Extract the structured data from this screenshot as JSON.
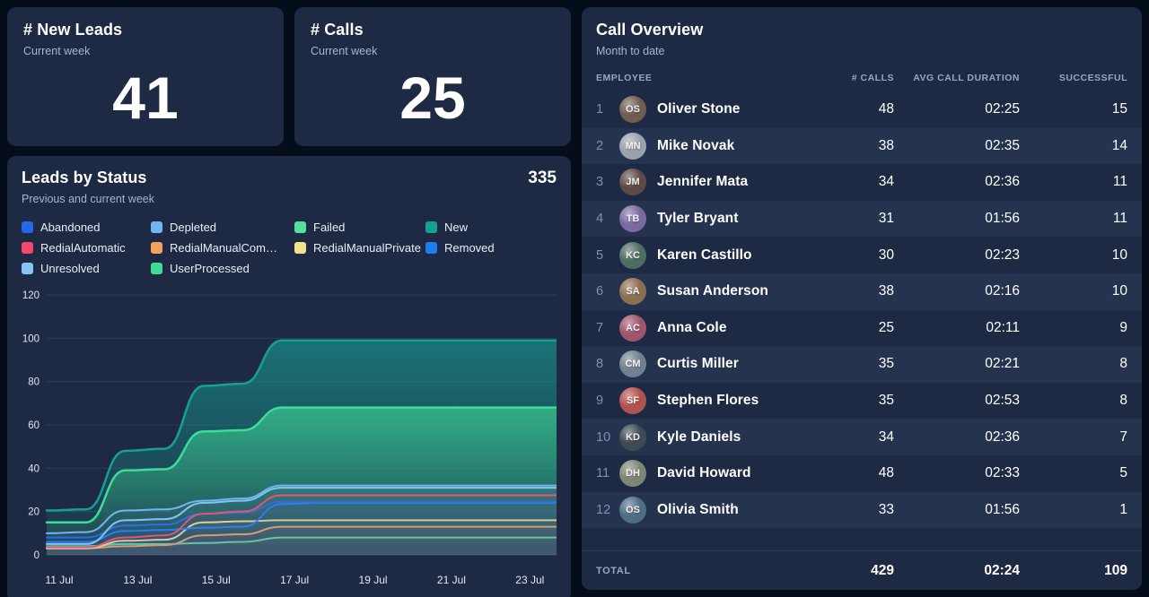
{
  "kpis": [
    {
      "title": "# New Leads",
      "subtitle": "Current week",
      "value": "41"
    },
    {
      "title": "# Calls",
      "subtitle": "Current week",
      "value": "25"
    }
  ],
  "leads": {
    "title": "Leads by Status",
    "subtitle": "Previous and current week",
    "total": "335"
  },
  "chart_data": {
    "type": "area",
    "title": "Leads by Status",
    "x_days": [
      11,
      12,
      13,
      14,
      15,
      16,
      17,
      18,
      19,
      20,
      21,
      22,
      23,
      24
    ],
    "x_tick_labels": [
      "11 Jul",
      "13 Jul",
      "15 Jul",
      "17 Jul",
      "19 Jul",
      "21 Jul",
      "23 Jul"
    ],
    "x_tick_days": [
      11,
      13,
      15,
      17,
      19,
      21,
      23
    ],
    "y_ticks": [
      0,
      20,
      40,
      60,
      80,
      100,
      120
    ],
    "ylim": [
      0,
      120
    ],
    "grid": true,
    "legend_position": "top",
    "legend": [
      {
        "label": "Abandoned",
        "color": "#2368e9"
      },
      {
        "label": "Depleted",
        "color": "#70b5f1"
      },
      {
        "label": "Failed",
        "color": "#55e0a0"
      },
      {
        "label": "New",
        "color": "#16a095"
      },
      {
        "label": "RedialAutomatic",
        "color": "#f5476b"
      },
      {
        "label": "RedialManualCom…",
        "color": "#f5a25e"
      },
      {
        "label": "RedialManualPrivate",
        "color": "#f2e38d"
      },
      {
        "label": "Removed",
        "color": "#1d7ef2"
      },
      {
        "label": "Unresolved",
        "color": "#86c5f4"
      },
      {
        "label": "UserProcessed",
        "color": "#3edc97"
      }
    ],
    "series": [
      {
        "name": "New",
        "color": "#16a095",
        "area": "gradient",
        "values": [
          20.5,
          21,
          48,
          49,
          78,
          79,
          99,
          99,
          99,
          99,
          99,
          99,
          99,
          99
        ]
      },
      {
        "name": "UserProcessed",
        "color": "#3edc97",
        "area": "gradient",
        "values": [
          15,
          15,
          39,
          39.5,
          57,
          57.5,
          68,
          68,
          68,
          68,
          68,
          68,
          68,
          68
        ]
      },
      {
        "name": "Failed",
        "color": "#55e0a0",
        "area": "faint",
        "values": [
          4,
          4,
          5,
          5,
          5.5,
          6,
          8,
          8,
          8,
          8,
          8,
          8,
          8,
          8
        ]
      },
      {
        "name": "RedialManualCom…",
        "color": "#f5a25e",
        "area": "faint",
        "values": [
          3,
          3,
          4,
          4.5,
          9,
          9.5,
          13,
          13,
          13,
          13,
          13,
          13,
          13,
          13
        ]
      },
      {
        "name": "RedialManualPrivate",
        "color": "#f2e38d",
        "area": "faint",
        "values": [
          3,
          3,
          6.5,
          7,
          15,
          15.5,
          16,
          16,
          16,
          16,
          16,
          16,
          16,
          16
        ]
      },
      {
        "name": "Removed",
        "color": "#1d7ef2",
        "area": "faint",
        "values": [
          6,
          6,
          11,
          11.5,
          12.5,
          13,
          23.5,
          24,
          24,
          24,
          24,
          24,
          24,
          24
        ]
      },
      {
        "name": "Abandoned",
        "color": "#2368e9",
        "area": "faint",
        "values": [
          8,
          8,
          13.5,
          14,
          19,
          19.5,
          24.5,
          24.5,
          24.5,
          24.5,
          24.5,
          24.5,
          24.5,
          24.5
        ]
      },
      {
        "name": "RedialAutomatic",
        "color": "#f5476b",
        "area": "faint",
        "values": [
          3.5,
          3.5,
          8,
          9,
          19,
          20,
          27.5,
          27.5,
          27.5,
          27.5,
          27.5,
          27.5,
          27.5,
          27.5
        ]
      },
      {
        "name": "Unresolved",
        "color": "#86c5f4",
        "area": "faint",
        "values": [
          5,
          5,
          16,
          16.5,
          24,
          25,
          31,
          31,
          31,
          31,
          31,
          31,
          31,
          31
        ]
      },
      {
        "name": "Depleted",
        "color": "#70b5f1",
        "area": "faint",
        "values": [
          10,
          10.5,
          20.5,
          21,
          25,
          26,
          32,
          32,
          32,
          32,
          32,
          32,
          32,
          32
        ]
      }
    ]
  },
  "calls_table": {
    "title": "Call Overview",
    "subtitle": "Month to date",
    "columns": {
      "employee": "EMPLOYEE",
      "calls": "# CALLS",
      "duration": "AVG CALL DURATION",
      "successful": "SUCCESSFUL"
    },
    "rows": [
      {
        "rank": "1",
        "name": "Oliver Stone",
        "calls": "48",
        "duration": "02:25",
        "successful": "15"
      },
      {
        "rank": "2",
        "name": "Mike Novak",
        "calls": "38",
        "duration": "02:35",
        "successful": "14"
      },
      {
        "rank": "3",
        "name": "Jennifer Mata",
        "calls": "34",
        "duration": "02:36",
        "successful": "11"
      },
      {
        "rank": "4",
        "name": "Tyler Bryant",
        "calls": "31",
        "duration": "01:56",
        "successful": "11"
      },
      {
        "rank": "5",
        "name": "Karen Castillo",
        "calls": "30",
        "duration": "02:23",
        "successful": "10"
      },
      {
        "rank": "6",
        "name": "Susan Anderson",
        "calls": "38",
        "duration": "02:16",
        "successful": "10"
      },
      {
        "rank": "7",
        "name": "Anna Cole",
        "calls": "25",
        "duration": "02:11",
        "successful": "9"
      },
      {
        "rank": "8",
        "name": "Curtis Miller",
        "calls": "35",
        "duration": "02:21",
        "successful": "8"
      },
      {
        "rank": "9",
        "name": "Stephen Flores",
        "calls": "35",
        "duration": "02:53",
        "successful": "8"
      },
      {
        "rank": "10",
        "name": "Kyle Daniels",
        "calls": "34",
        "duration": "02:36",
        "successful": "7"
      },
      {
        "rank": "11",
        "name": "David Howard",
        "calls": "48",
        "duration": "02:33",
        "successful": "5"
      },
      {
        "rank": "12",
        "name": "Olivia Smith",
        "calls": "33",
        "duration": "01:56",
        "successful": "1"
      }
    ],
    "total": {
      "label": "TOTAL",
      "calls": "429",
      "duration": "02:24",
      "successful": "109"
    }
  },
  "colors": {
    "page_bg": "#050d1a",
    "card_bg": "#1e2a44",
    "row_stripe": "#26334f",
    "muted_text": "#a6b4d2",
    "header_text": "#94a7c8"
  }
}
